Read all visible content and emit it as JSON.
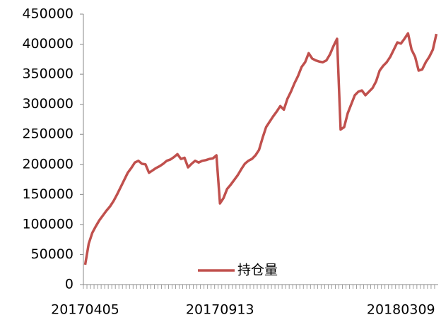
{
  "chart_data": {
    "type": "line",
    "categories": [
      "20170405",
      null,
      null,
      null,
      null,
      null,
      null,
      null,
      null,
      null,
      null,
      null,
      null,
      null,
      null,
      null,
      null,
      null,
      null,
      null,
      null,
      null,
      null,
      null,
      null,
      null,
      null,
      null,
      null,
      null,
      null,
      null,
      null,
      null,
      null,
      null,
      null,
      null,
      "20170913",
      null,
      null,
      null,
      null,
      null,
      null,
      null,
      null,
      null,
      null,
      null,
      null,
      null,
      null,
      null,
      null,
      null,
      null,
      null,
      null,
      null,
      null,
      null,
      null,
      null,
      null,
      null,
      null,
      null,
      null,
      null,
      null,
      null,
      null,
      null,
      null,
      null,
      null,
      null,
      null,
      null,
      null,
      null,
      null,
      null,
      null,
      null,
      null,
      null,
      null,
      "20180309",
      null,
      null,
      null,
      null,
      null,
      null,
      null,
      null,
      null,
      null
    ],
    "series": [
      {
        "name": "持仓量",
        "color": "#c0504d",
        "values": [
          33000,
          68000,
          86000,
          97000,
          107000,
          115000,
          123000,
          130000,
          139000,
          150000,
          162000,
          174000,
          186000,
          194000,
          203000,
          206000,
          201000,
          200000,
          186000,
          190000,
          194000,
          197000,
          201000,
          206000,
          208000,
          212000,
          217000,
          209000,
          211000,
          195000,
          201000,
          206000,
          203000,
          206000,
          207000,
          209000,
          210000,
          215000,
          135000,
          144000,
          159000,
          166000,
          174000,
          182000,
          192000,
          201000,
          206000,
          209000,
          215000,
          224000,
          244000,
          262000,
          271000,
          280000,
          288000,
          297000,
          291000,
          309000,
          321000,
          335000,
          347000,
          362000,
          370000,
          385000,
          376000,
          373000,
          371000,
          370000,
          373000,
          383000,
          397000,
          409000,
          258000,
          262000,
          285000,
          300000,
          315000,
          321000,
          323000,
          315000,
          321000,
          327000,
          338000,
          356000,
          364000,
          370000,
          379000,
          391000,
          403000,
          401000,
          409000,
          418000,
          391000,
          379000,
          356000,
          358000,
          370000,
          379000,
          391000,
          417000
        ]
      }
    ],
    "ylim": [
      0,
      450000
    ],
    "yticks": [
      0,
      50000,
      100000,
      150000,
      200000,
      250000,
      300000,
      350000,
      400000,
      450000
    ],
    "grid": false
  }
}
